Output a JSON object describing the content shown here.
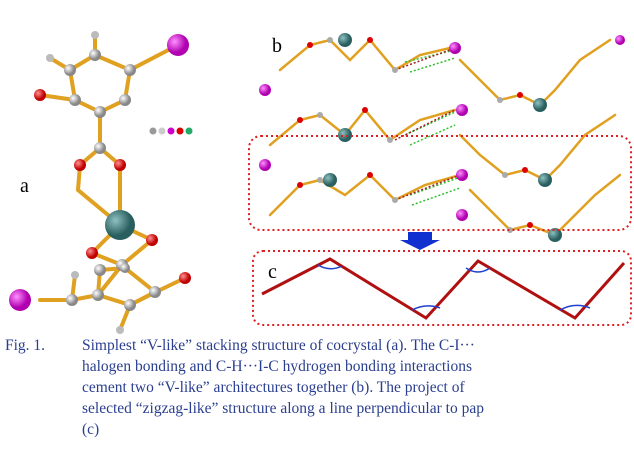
{
  "panels": [
    {
      "label": "a"
    },
    {
      "label": "b"
    },
    {
      "label": "c"
    }
  ],
  "caption": {
    "label": "Fig. 1.",
    "lines": [
      "Simplest “V-like” stacking structure of cocrystal (a). The C-I···",
      "halogen bonding and C-H···I-C hydrogen bonding interactions",
      "cement two “V-like” architectures together (b). The project of",
      "selected “zigzag-like” structure along a line perpendicular to pap",
      "(c)"
    ]
  }
}
